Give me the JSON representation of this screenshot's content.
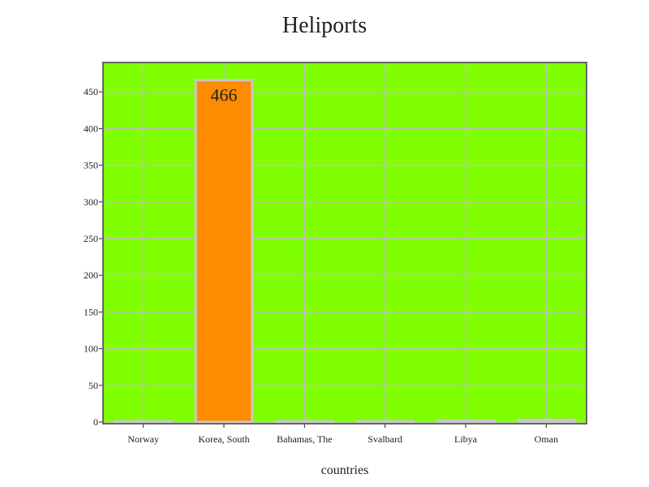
{
  "chart_data": {
    "type": "bar",
    "title": "Heliports",
    "xlabel": "countries",
    "ylabel": "",
    "categories": [
      "Norway",
      "Korea, South",
      "Bahamas, The",
      "Svalbard",
      "Libya",
      "Oman"
    ],
    "values": [
      1,
      466,
      1,
      1,
      2,
      3
    ],
    "data_labels": [
      "",
      "466",
      "",
      "",
      "",
      ""
    ],
    "ylim": [
      0,
      490
    ],
    "yticks": [
      0,
      50,
      100,
      150,
      200,
      250,
      300,
      350,
      400,
      450
    ],
    "grid": true,
    "legend": "none",
    "colors": {
      "plot_background": "#7fff00",
      "bar_fill": "#ff8c00",
      "bar_stroke": "#c8c8c8",
      "grid": "#c0c0c0",
      "frame": "#666666"
    }
  }
}
